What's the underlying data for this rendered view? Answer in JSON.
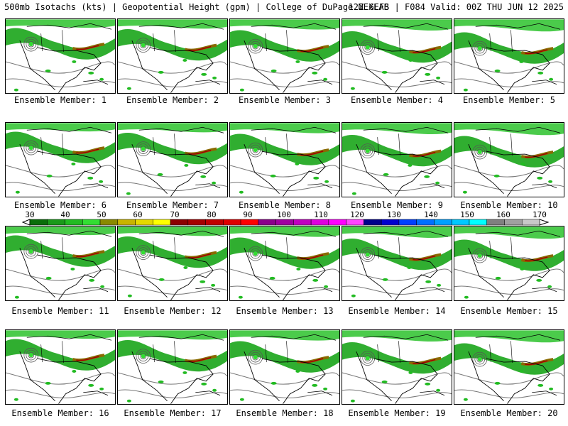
{
  "header": {
    "left": "500mb Isotachs (kts) | Geopotential Height (gpm) | College of DuPage NEXLAB",
    "right": "12Z GEFS | F084 Valid: 00Z THU JUN 12 2025"
  },
  "members": [
    "Ensemble Member: 1",
    "Ensemble Member: 2",
    "Ensemble Member: 3",
    "Ensemble Member: 4",
    "Ensemble Member: 5",
    "Ensemble Member: 6",
    "Ensemble Member: 7",
    "Ensemble Member: 8",
    "Ensemble Member: 9",
    "Ensemble Member: 10",
    "Ensemble Member: 11",
    "Ensemble Member: 12",
    "Ensemble Member: 13",
    "Ensemble Member: 14",
    "Ensemble Member: 15",
    "Ensemble Member: 16",
    "Ensemble Member: 17",
    "Ensemble Member: 18",
    "Ensemble Member: 19",
    "Ensemble Member: 20"
  ],
  "colorbar": {
    "tick_labels": [
      "30",
      "40",
      "50",
      "60",
      "70",
      "80",
      "90",
      "100",
      "110",
      "120",
      "130",
      "140",
      "150",
      "160",
      "170"
    ],
    "colors": [
      "#0a6e0a",
      "#1a9a1a",
      "#22bb22",
      "#33dd33",
      "#8a8a00",
      "#c8b400",
      "#e6d800",
      "#ffff00",
      "#8b0000",
      "#a50000",
      "#c00000",
      "#dd0000",
      "#ff0000",
      "#8b008b",
      "#a000a0",
      "#c000c0",
      "#dd00dd",
      "#ff00ff",
      "#ff44ff",
      "#00008b",
      "#0000cd",
      "#0040ff",
      "#0070ff",
      "#00a0ff",
      "#00c8ff",
      "#00ffff",
      "#808080",
      "#a0a0a0",
      "#c8c8c8"
    ]
  }
}
